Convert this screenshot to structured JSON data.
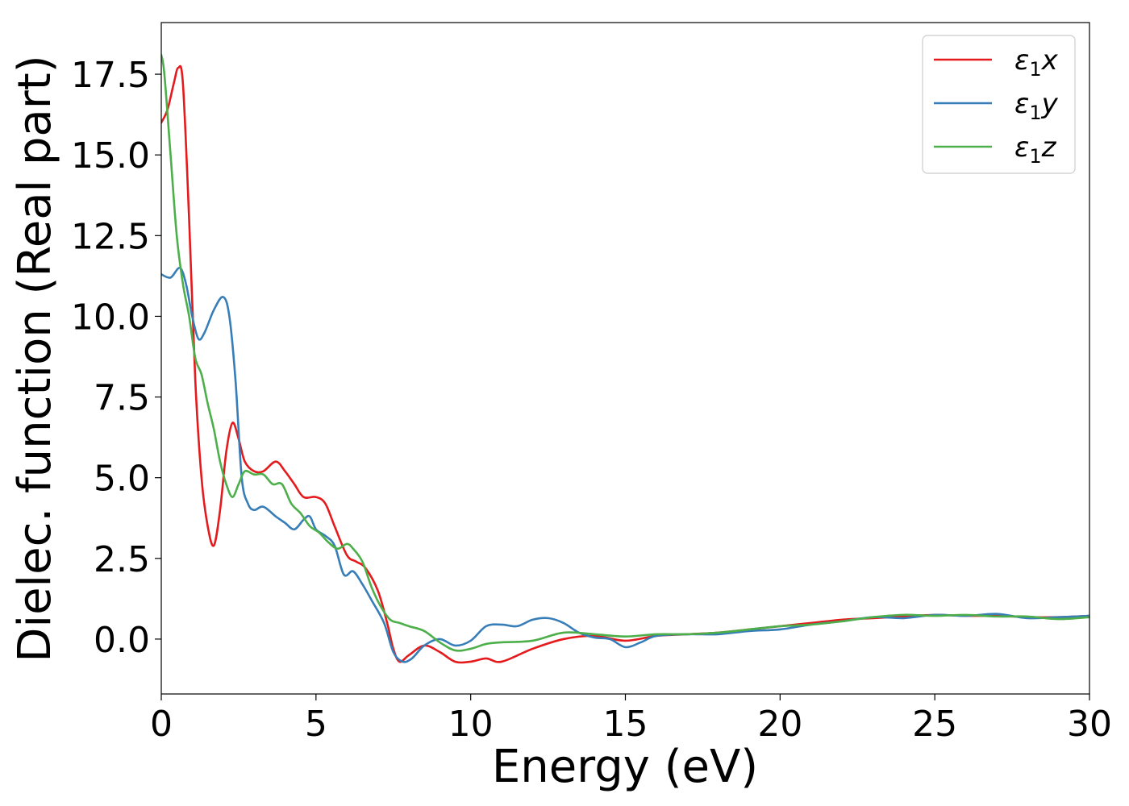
{
  "chart_data": {
    "type": "line",
    "xlabel": "Energy (eV)",
    "ylabel": "Dielec. function (Real part)",
    "xlim": [
      0,
      30
    ],
    "ylim": [
      -1.7,
      19.1
    ],
    "xticks": [
      0,
      5,
      10,
      15,
      20,
      25,
      30
    ],
    "xtick_labels": [
      "0",
      "5",
      "10",
      "15",
      "20",
      "25",
      "30"
    ],
    "yticks": [
      0.0,
      2.5,
      5.0,
      7.5,
      10.0,
      12.5,
      15.0,
      17.5
    ],
    "ytick_labels": [
      "0.0",
      "2.5",
      "5.0",
      "7.5",
      "10.0",
      "12.5",
      "15.0",
      "17.5"
    ],
    "grid": false,
    "legend_position": "top-right",
    "series": [
      {
        "name": "ε₁x",
        "label_base": "ε",
        "label_sub": "1",
        "label_suffix": "x",
        "color": "#e41a1c",
        "x": [
          0,
          0.2,
          0.4,
          0.55,
          0.7,
          0.9,
          1.1,
          1.3,
          1.5,
          1.7,
          1.9,
          2.1,
          2.3,
          2.5,
          2.7,
          3.0,
          3.3,
          3.7,
          4.0,
          4.3,
          4.6,
          5.0,
          5.3,
          5.6,
          6.0,
          6.3,
          6.6,
          7.0,
          7.3,
          7.5,
          7.7,
          8.0,
          8.5,
          9.0,
          9.5,
          10.0,
          10.5,
          11.0,
          12.0,
          13.0,
          14.0,
          15.0,
          16.0,
          17.0,
          18.0,
          19.0,
          20.0,
          21.0,
          22.0,
          23.0,
          24.0,
          25.0,
          26.0,
          27.0,
          28.0,
          29.0,
          30.0
        ],
        "y": [
          16.0,
          16.4,
          17.2,
          17.7,
          17.2,
          13.0,
          8.0,
          5.0,
          3.5,
          2.9,
          4.0,
          5.8,
          6.7,
          6.2,
          5.5,
          5.2,
          5.2,
          5.5,
          5.2,
          4.8,
          4.4,
          4.4,
          4.2,
          3.5,
          2.6,
          2.4,
          2.2,
          1.5,
          0.5,
          -0.3,
          -0.7,
          -0.5,
          -0.2,
          -0.4,
          -0.7,
          -0.7,
          -0.6,
          -0.7,
          -0.3,
          0.0,
          0.1,
          -0.05,
          0.1,
          0.15,
          0.2,
          0.3,
          0.4,
          0.5,
          0.6,
          0.65,
          0.7,
          0.75,
          0.72,
          0.72,
          0.68,
          0.68,
          0.72
        ]
      },
      {
        "name": "ε₁y",
        "label_base": "ε",
        "label_sub": "1",
        "label_suffix": "y",
        "color": "#377eb8",
        "x": [
          0,
          0.3,
          0.6,
          0.8,
          1.0,
          1.2,
          1.4,
          1.7,
          2.0,
          2.2,
          2.4,
          2.6,
          2.8,
          3.0,
          3.3,
          3.7,
          4.0,
          4.3,
          4.6,
          4.8,
          5.0,
          5.3,
          5.6,
          5.9,
          6.2,
          6.5,
          6.8,
          7.2,
          7.5,
          7.8,
          8.1,
          8.5,
          9.0,
          9.5,
          10.0,
          10.5,
          11.0,
          11.5,
          12.0,
          12.5,
          13.0,
          13.5,
          14.0,
          14.5,
          15.0,
          15.5,
          16.0,
          17.0,
          18.0,
          19.0,
          20.0,
          21.0,
          22.0,
          23.0,
          24.0,
          25.0,
          26.0,
          27.0,
          28.0,
          29.0,
          30.0
        ],
        "y": [
          11.3,
          11.2,
          11.5,
          11.0,
          10.0,
          9.3,
          9.5,
          10.2,
          10.6,
          10.0,
          8.0,
          5.0,
          4.2,
          4.0,
          4.1,
          3.8,
          3.6,
          3.4,
          3.7,
          3.8,
          3.4,
          3.2,
          2.9,
          2.0,
          2.1,
          1.7,
          1.2,
          0.5,
          -0.4,
          -0.7,
          -0.6,
          -0.2,
          0.0,
          -0.2,
          -0.05,
          0.4,
          0.45,
          0.4,
          0.6,
          0.65,
          0.5,
          0.2,
          0.05,
          0.0,
          -0.25,
          -0.1,
          0.1,
          0.15,
          0.15,
          0.25,
          0.3,
          0.45,
          0.55,
          0.68,
          0.65,
          0.75,
          0.72,
          0.78,
          0.65,
          0.68,
          0.72
        ]
      },
      {
        "name": "ε₁z",
        "label_base": "ε",
        "label_sub": "1",
        "label_suffix": "z",
        "color": "#4daf4a",
        "x": [
          0,
          0.1,
          0.3,
          0.5,
          0.7,
          0.9,
          1.1,
          1.3,
          1.5,
          1.7,
          1.9,
          2.1,
          2.3,
          2.5,
          2.7,
          3.0,
          3.3,
          3.6,
          3.9,
          4.2,
          4.5,
          4.8,
          5.1,
          5.4,
          5.7,
          6.0,
          6.2,
          6.5,
          6.8,
          7.1,
          7.4,
          7.7,
          8.0,
          8.5,
          9.0,
          9.5,
          10.0,
          10.5,
          11.0,
          12.0,
          13.0,
          14.0,
          15.0,
          16.0,
          17.0,
          18.0,
          19.0,
          20.0,
          21.0,
          22.0,
          23.0,
          24.0,
          25.0,
          26.0,
          27.0,
          28.0,
          29.0,
          30.0
        ],
        "y": [
          18.1,
          17.5,
          15.0,
          12.5,
          11.0,
          10.0,
          8.7,
          8.2,
          7.3,
          6.5,
          5.5,
          4.8,
          4.4,
          4.8,
          5.2,
          5.1,
          5.1,
          4.8,
          4.8,
          4.2,
          3.9,
          3.5,
          3.3,
          3.0,
          2.8,
          2.95,
          2.8,
          2.4,
          1.6,
          1.0,
          0.6,
          0.5,
          0.4,
          0.25,
          -0.1,
          -0.35,
          -0.3,
          -0.15,
          -0.1,
          -0.05,
          0.2,
          0.15,
          0.08,
          0.15,
          0.15,
          0.2,
          0.3,
          0.4,
          0.45,
          0.55,
          0.68,
          0.75,
          0.72,
          0.75,
          0.7,
          0.7,
          0.62,
          0.68
        ]
      }
    ]
  }
}
